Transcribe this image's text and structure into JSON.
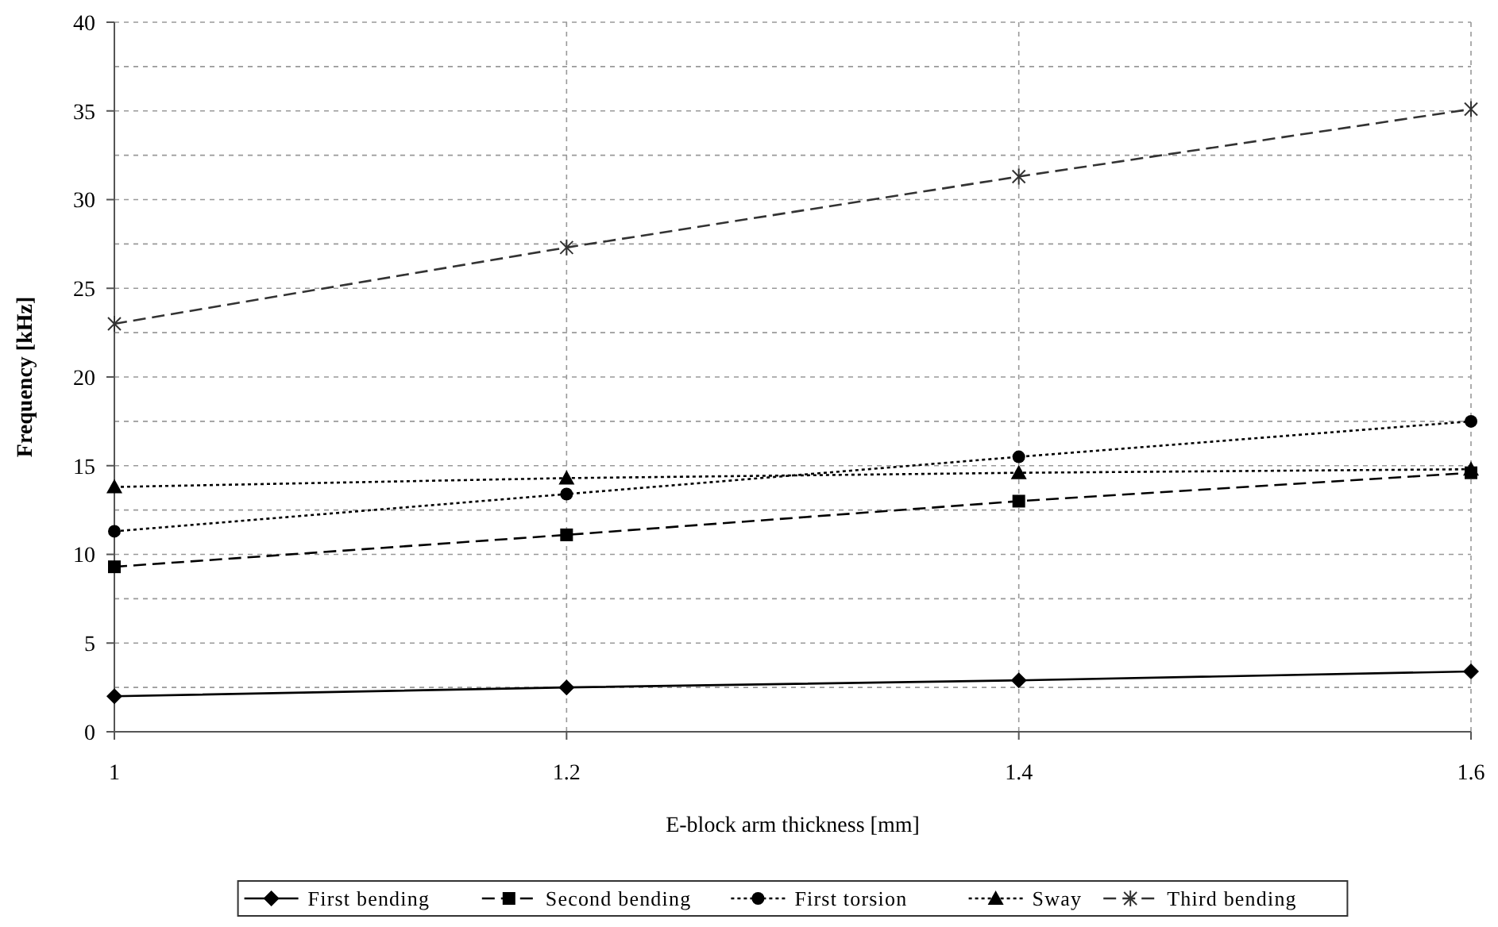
{
  "chart_data": {
    "type": "line",
    "xlabel": "E-block arm thickness [mm]",
    "ylabel": "Frequency [kHz]",
    "x": [
      1,
      1.2,
      1.4,
      1.6
    ],
    "xlim": [
      1,
      1.6
    ],
    "xticks": [
      1,
      1.2,
      1.4,
      1.6
    ],
    "ylim": [
      0,
      40
    ],
    "yticks": [
      0,
      {
        "value": 2.5,
        "label": null
      },
      5,
      {
        "value": 7.5,
        "label": null
      },
      10,
      {
        "value": 12.5,
        "label": null
      },
      15,
      {
        "value": 17.5,
        "label": null
      },
      20,
      {
        "value": 22.5,
        "label": null
      },
      25,
      {
        "value": 27.5,
        "label": null
      },
      30,
      {
        "value": 32.5,
        "label": null
      },
      35,
      {
        "value": 37.5,
        "label": null
      },
      40
    ],
    "grid": true,
    "legend": "bottom",
    "series": [
      {
        "name": "First bending",
        "color": "#000000",
        "marker": "diamond",
        "line_style": "solid",
        "values": [
          2.0,
          2.5,
          2.9,
          3.4
        ]
      },
      {
        "name": "Second bending",
        "color": "#000000",
        "marker": "square",
        "line_style": "dashed",
        "values": [
          9.3,
          11.1,
          13.0,
          14.6
        ]
      },
      {
        "name": "First torsion",
        "color": "#000000",
        "marker": "circle",
        "line_style": "dotted",
        "values": [
          11.3,
          13.4,
          15.5,
          17.5
        ]
      },
      {
        "name": "Sway",
        "color": "#000000",
        "marker": "triangle",
        "line_style": "dotted",
        "values": [
          13.8,
          14.3,
          14.6,
          14.8
        ]
      },
      {
        "name": "Third bending",
        "color": "#333333",
        "marker": "cross",
        "line_style": "dashed",
        "values": [
          23.0,
          27.3,
          31.3,
          35.1
        ]
      }
    ]
  }
}
